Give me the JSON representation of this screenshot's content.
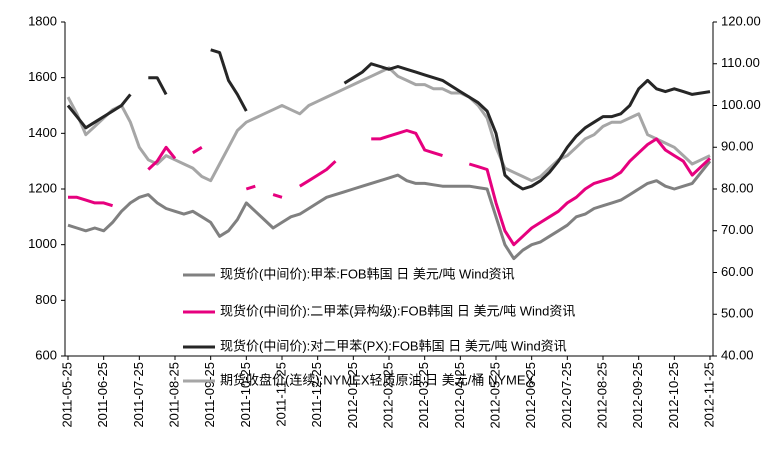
{
  "chart_data": {
    "type": "line",
    "categories": [
      "2011-05-25",
      null,
      null,
      null,
      "2011-06-25",
      null,
      null,
      null,
      "2011-07-25",
      null,
      null,
      null,
      "2011-08-25",
      null,
      null,
      null,
      "2011-09-25",
      null,
      null,
      null,
      "2011-10-25",
      null,
      null,
      null,
      "2011-11-25",
      null,
      null,
      null,
      "2011-12-25",
      null,
      null,
      null,
      "2012-01-25",
      null,
      null,
      null,
      "2012-02-25",
      null,
      null,
      null,
      "2012-03-25",
      null,
      null,
      null,
      "2012-04-25",
      null,
      null,
      null,
      "2012-05-25",
      null,
      null,
      null,
      "2012-06-25",
      null,
      null,
      null,
      "2012-07-25",
      null,
      null,
      null,
      "2012-08-25",
      null,
      null,
      null,
      "2012-09-25",
      null,
      null,
      null,
      "2012-10-25",
      null,
      null,
      null,
      "2012-11-25"
    ],
    "series": [
      {
        "name": "现货价(中间价):甲苯:FOB韩国 日 美元/吨 Wind资讯",
        "color": "#808080",
        "values": [
          1070,
          1060,
          1050,
          1060,
          1050,
          1080,
          1120,
          1150,
          1170,
          1180,
          1150,
          1130,
          1120,
          1110,
          1120,
          1100,
          1080,
          1030,
          1050,
          1090,
          1150,
          1120,
          1090,
          1060,
          1080,
          1100,
          1110,
          1130,
          1150,
          1170,
          1180,
          1190,
          1200,
          1210,
          1220,
          1230,
          1240,
          1250,
          1230,
          1220,
          1220,
          1215,
          1210,
          1210,
          1210,
          1210,
          1205,
          1200,
          1100,
          1000,
          950,
          980,
          1000,
          1010,
          1030,
          1050,
          1070,
          1100,
          1110,
          1130,
          1140,
          1150,
          1160,
          1180,
          1200,
          1220,
          1230,
          1210,
          1200,
          1210,
          1220,
          1260,
          1300
        ]
      },
      {
        "name": "现货价(中间价):二甲苯(异构级):FOB韩国 日 美元/吨 Wind资讯",
        "color": "#e6007e",
        "values": [
          1170,
          1170,
          1160,
          1150,
          1150,
          1140,
          null,
          null,
          null,
          1270,
          1300,
          1350,
          1310,
          null,
          1330,
          1350,
          null,
          null,
          1230,
          null,
          1200,
          1210,
          null,
          1180,
          1170,
          null,
          1210,
          1230,
          1250,
          1270,
          1300,
          null,
          null,
          null,
          1380,
          1380,
          1390,
          1400,
          1410,
          1400,
          1340,
          1330,
          1320,
          null,
          null,
          1290,
          1280,
          1270,
          1150,
          1050,
          1000,
          1030,
          1060,
          1080,
          1100,
          1120,
          1150,
          1170,
          1200,
          1220,
          1230,
          1240,
          1260,
          1300,
          1330,
          1360,
          1380,
          1340,
          1320,
          1300,
          1250,
          1280,
          1310
        ]
      },
      {
        "name": "现货价(中间价):对二甲苯(PX):FOB韩国 日 美元/吨 Wind资讯",
        "color": "#262626",
        "values": [
          1500,
          1460,
          1420,
          1440,
          1460,
          1480,
          1500,
          1540,
          null,
          1600,
          1600,
          1540,
          null,
          null,
          null,
          null,
          1700,
          1690,
          1590,
          1540,
          1480,
          null,
          null,
          null,
          null,
          null,
          null,
          null,
          null,
          null,
          null,
          1580,
          1600,
          1620,
          1650,
          1640,
          1630,
          1640,
          1630,
          1620,
          1610,
          1600,
          1590,
          1570,
          1550,
          1530,
          1510,
          1480,
          1400,
          1250,
          1220,
          1200,
          1210,
          1230,
          1260,
          1300,
          1350,
          1390,
          1420,
          1440,
          1460,
          1460,
          1470,
          1500,
          1560,
          1590,
          1560,
          1550,
          1560,
          1550,
          1540,
          1545,
          1550
        ]
      },
      {
        "name": "期货收盘价(连续):NYMEX轻质原油 日 美元/桶 NYMEX",
        "color": "#a6a6a6",
        "axis": "y2",
        "values": [
          102,
          98,
          93,
          95,
          97,
          99,
          100,
          96,
          90,
          87,
          86,
          88,
          87,
          86,
          85,
          83,
          82,
          86,
          90,
          94,
          96,
          97,
          98,
          99,
          100,
          99,
          98,
          100,
          101,
          102,
          103,
          104,
          105,
          106,
          107,
          108,
          109,
          107,
          106,
          105,
          105,
          104,
          104,
          103,
          103,
          102,
          100,
          97,
          90,
          85,
          84,
          83,
          82,
          83,
          85,
          87,
          88,
          90,
          92,
          93,
          95,
          96,
          96,
          97,
          98,
          93,
          92,
          91,
          90,
          88,
          86,
          87,
          88
        ]
      }
    ],
    "ylim": [
      600,
      1800
    ],
    "yticks": [
      600,
      800,
      1000,
      1200,
      1400,
      1600,
      1800
    ],
    "y2lim": [
      40,
      120
    ],
    "y2ticks": [
      {
        "value": 40,
        "label": "40.00"
      },
      {
        "value": 50,
        "label": "50.00"
      },
      {
        "value": 60,
        "label": "60.00"
      },
      {
        "value": 70,
        "label": "70.00"
      },
      {
        "value": 80,
        "label": "80.00"
      },
      {
        "value": 90,
        "label": "90.00"
      },
      {
        "value": 100,
        "label": "100.00"
      },
      {
        "value": 110,
        "label": "110.00"
      },
      {
        "value": 120,
        "label": "120.00"
      }
    ]
  }
}
